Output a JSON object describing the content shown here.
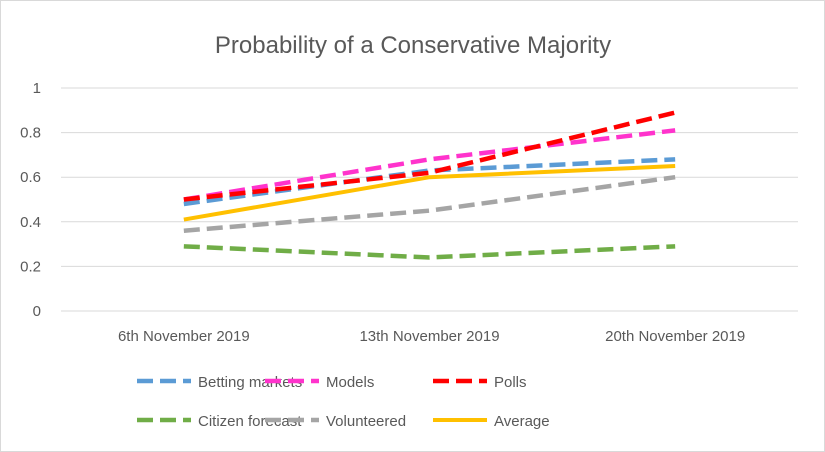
{
  "chart_data": {
    "type": "line",
    "title": "Probability of a Conservative Majority",
    "xlabel": "",
    "ylabel": "",
    "categories": [
      "6th November 2019",
      "13th November 2019",
      "20th November 2019"
    ],
    "ylim": [
      0,
      1
    ],
    "yticks": [
      "0",
      "0.2",
      "0.4",
      "0.6",
      "0.8",
      "1"
    ],
    "grid": "horizontal",
    "legend_position": "bottom",
    "series": [
      {
        "name": "Betting markets",
        "values": [
          0.48,
          0.63,
          0.68
        ],
        "color": "#5b9bd5",
        "dashed": true
      },
      {
        "name": "Models",
        "values": [
          0.5,
          0.68,
          0.81
        ],
        "color": "#ff33cc",
        "dashed": true
      },
      {
        "name": "Polls",
        "values": [
          0.5,
          0.62,
          0.89
        ],
        "color": "#ff0000",
        "dashed": true
      },
      {
        "name": "Citizen forecast",
        "values": [
          0.29,
          0.24,
          0.29
        ],
        "color": "#70ad47",
        "dashed": true
      },
      {
        "name": "Volunteered",
        "values": [
          0.36,
          0.45,
          0.6
        ],
        "color": "#a5a5a5",
        "dashed": true
      },
      {
        "name": "Average",
        "values": [
          0.41,
          0.6,
          0.65
        ],
        "color": "#ffc000",
        "dashed": false
      }
    ]
  }
}
